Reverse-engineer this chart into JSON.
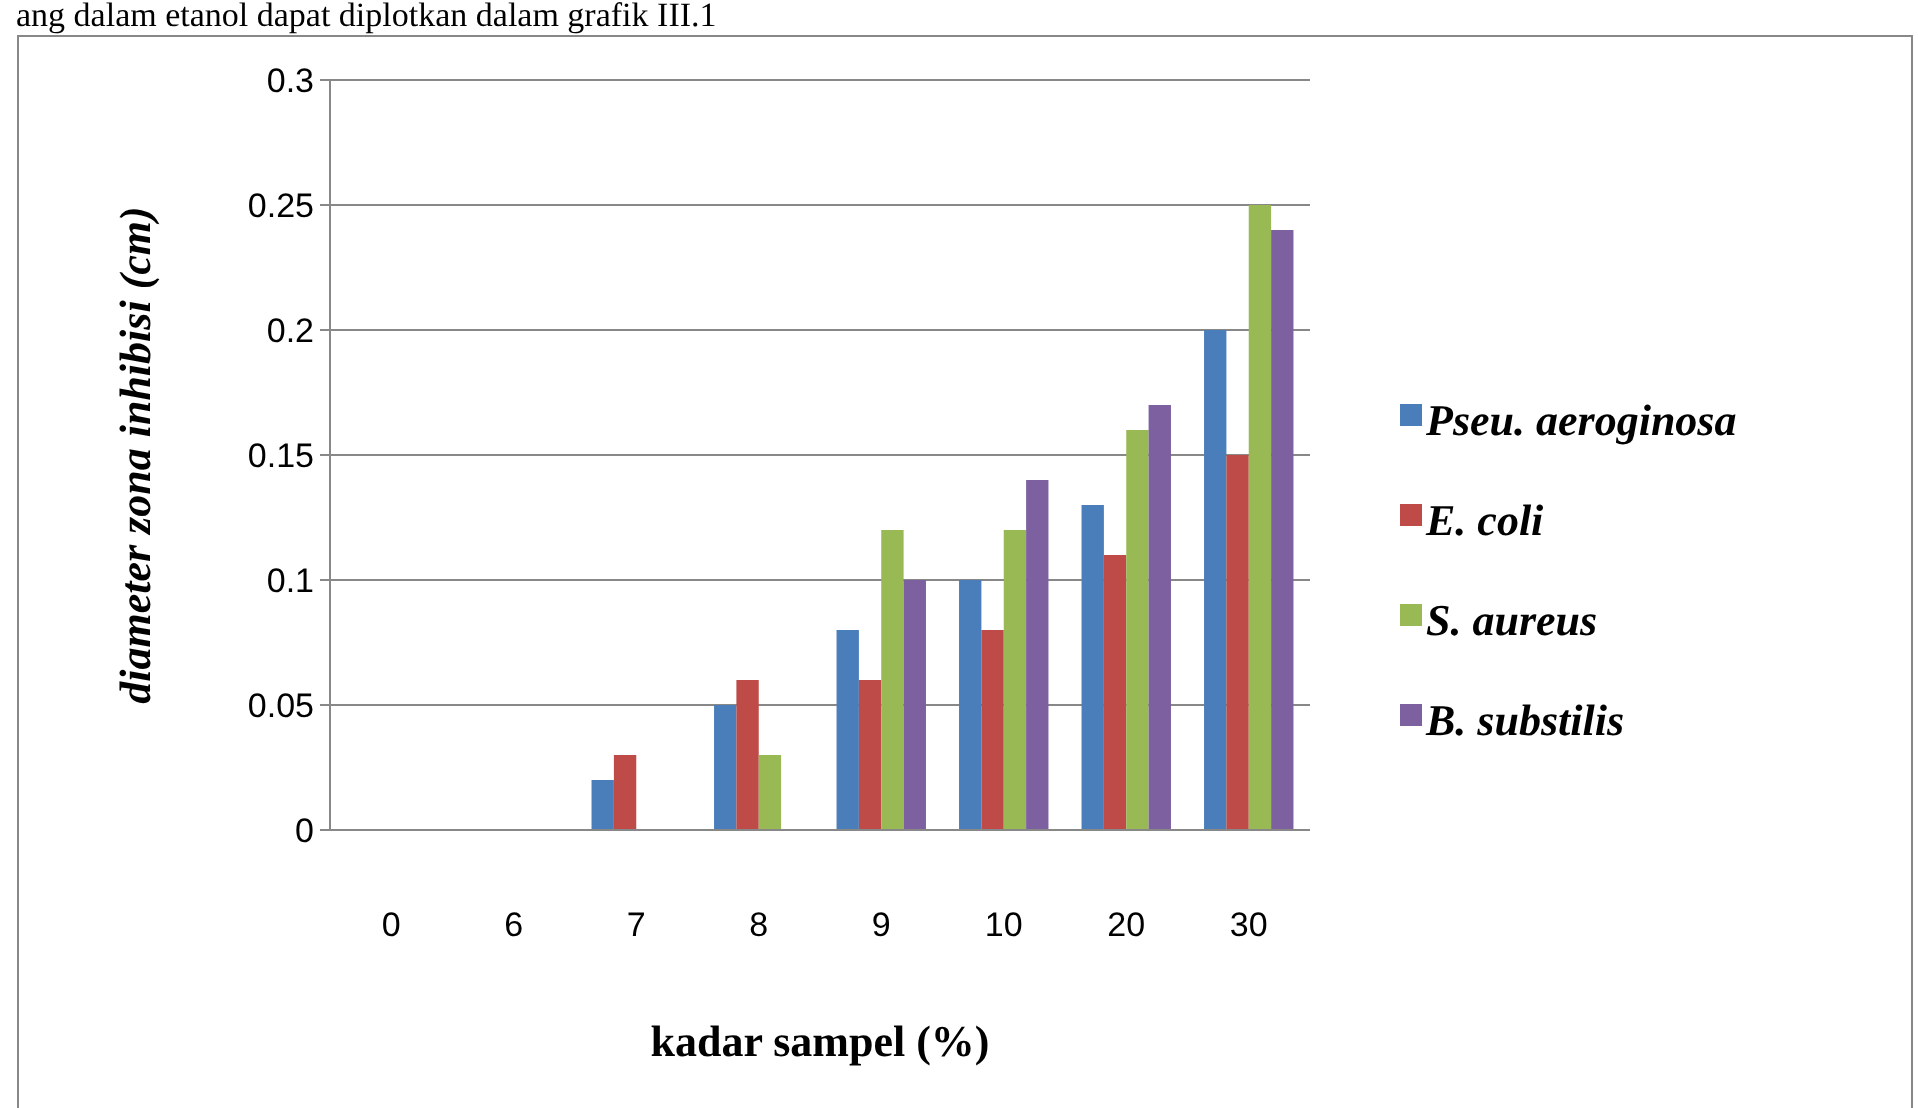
{
  "chart_data": {
    "type": "bar",
    "xlabel": "kadar sampel (%)",
    "ylabel": "diameter zona inhibisi (cm)",
    "annotations": [
      "ang dalam etanol dapat diplotkan dalam grafik III.1"
    ],
    "categories": [
      "0",
      "6",
      "7",
      "8",
      "9",
      "10",
      "20",
      "30"
    ],
    "series": [
      {
        "name": "Pseu. aeroginosa",
        "color": "#4a7ebb",
        "values": [
          0,
          0,
          0.02,
          0.05,
          0.08,
          0.1,
          0.13,
          0.2
        ]
      },
      {
        "name": "E. coli",
        "color": "#be4b48",
        "values": [
          0,
          0,
          0.03,
          0.06,
          0.06,
          0.08,
          0.11,
          0.15
        ]
      },
      {
        "name": "S. aureus",
        "color": "#98b954",
        "values": [
          0,
          0,
          0,
          0.03,
          0.12,
          0.12,
          0.16,
          0.25
        ]
      },
      {
        "name": "B. substilis",
        "color": "#7d60a0",
        "values": [
          0,
          0,
          0,
          0,
          0.1,
          0.14,
          0.17,
          0.24
        ]
      }
    ],
    "ylim": [
      0,
      0.3
    ],
    "yticks": [
      0,
      0.05,
      0.1,
      0.15,
      0.2,
      0.25,
      0.3
    ],
    "grid": "y",
    "legend": "right"
  }
}
